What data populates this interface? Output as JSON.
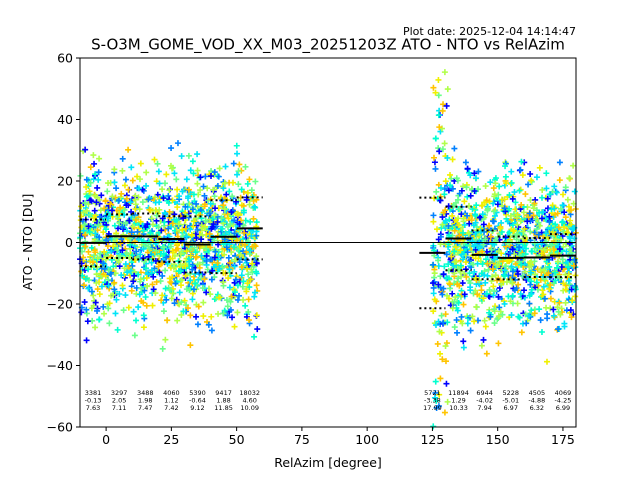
{
  "plot_date": "Plot date: 2025-12-04 14:14:47",
  "chart_data": {
    "type": "scatter",
    "title": "S-O3M_GOME_VOD_XX_M03_20251203Z ATO - NTO vs RelAzim",
    "xlabel": "RelAzim [degree]",
    "ylabel": "ATO - NTO [DU]",
    "xlim": [
      -10,
      180
    ],
    "ylim": [
      -60,
      60
    ],
    "xticks": [
      "0",
      "25",
      "50",
      "75",
      "100",
      "125",
      "150",
      "175"
    ],
    "yticks": [
      "60",
      "40",
      "20",
      "0",
      "−20",
      "−40",
      "−60"
    ],
    "xtick_values": [
      0,
      25,
      50,
      75,
      100,
      125,
      150,
      175
    ],
    "ytick_values": [
      60,
      40,
      20,
      0,
      -20,
      -40,
      -60
    ],
    "grid": false,
    "zero_line": 0,
    "point_colors": [
      "#0000ff",
      "#0080ff",
      "#00e4f8",
      "#00ffd0",
      "#6aff8a",
      "#b0ff4a",
      "#f0f000",
      "#ffc400"
    ],
    "clusters": [
      {
        "x": [
          -10,
          58
        ],
        "y_center": 0,
        "y_spread": 40
      },
      {
        "x": [
          125,
          180
        ],
        "y_center": -2,
        "y_spread": 40
      }
    ],
    "bins": [
      {
        "x_start": -10,
        "x_end": 0,
        "count": "3381",
        "mean": "-0.13",
        "std": "7.63",
        "mean_val": -0.13,
        "std_val": 7.63
      },
      {
        "x_start": 0,
        "x_end": 10,
        "count": "3297",
        "mean": "2.05",
        "std": "7.11",
        "mean_val": 2.05,
        "std_val": 7.11
      },
      {
        "x_start": 10,
        "x_end": 20,
        "count": "3488",
        "mean": "1.98",
        "std": "7.47",
        "mean_val": 1.98,
        "std_val": 7.47
      },
      {
        "x_start": 20,
        "x_end": 30,
        "count": "4060",
        "mean": "1.12",
        "std": "7.42",
        "mean_val": 1.12,
        "std_val": 7.42
      },
      {
        "x_start": 30,
        "x_end": 40,
        "count": "5390",
        "mean": "-0.64",
        "std": "9.12",
        "mean_val": -0.64,
        "std_val": 9.12
      },
      {
        "x_start": 40,
        "x_end": 50,
        "count": "9417",
        "mean": "1.88",
        "std": "11.85",
        "mean_val": 1.88,
        "std_val": 11.85
      },
      {
        "x_start": 50,
        "x_end": 60,
        "count": "18032",
        "mean": "4.60",
        "std": "10.09",
        "mean_val": 4.6,
        "std_val": 10.09
      },
      {
        "x_start": 120,
        "x_end": 130,
        "count": "5721",
        "mean": "-3.38",
        "std": "17.99",
        "mean_val": -3.38,
        "std_val": 17.99
      },
      {
        "x_start": 130,
        "x_end": 140,
        "count": "11894",
        "mean": "1.29",
        "std": "10.33",
        "mean_val": 1.29,
        "std_val": 10.33
      },
      {
        "x_start": 140,
        "x_end": 150,
        "count": "6944",
        "mean": "-4.02",
        "std": "7.94",
        "mean_val": -4.02,
        "std_val": 7.94
      },
      {
        "x_start": 150,
        "x_end": 160,
        "count": "5228",
        "mean": "-5.01",
        "std": "6.97",
        "mean_val": -5.01,
        "std_val": 6.97
      },
      {
        "x_start": 160,
        "x_end": 170,
        "count": "4505",
        "mean": "-4.88",
        "std": "6.32",
        "mean_val": -4.88,
        "std_val": 6.32
      },
      {
        "x_start": 170,
        "x_end": 180,
        "count": "4069",
        "mean": "-4.25",
        "std": "6.99",
        "mean_val": -4.25,
        "std_val": 6.99
      }
    ]
  }
}
